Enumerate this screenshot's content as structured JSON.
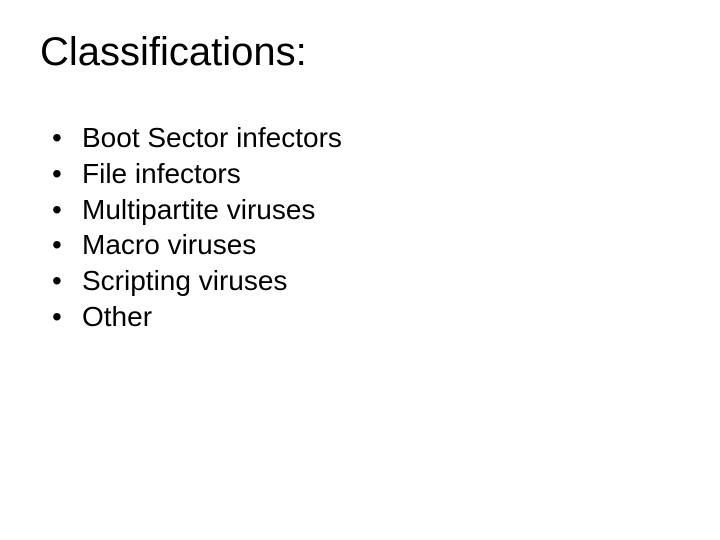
{
  "title": "Classifications:",
  "items": [
    {
      "label": "Boot Sector infectors"
    },
    {
      "label": "File infectors"
    },
    {
      "label": "Multipartite viruses"
    },
    {
      "label": "Macro viruses"
    },
    {
      "label": "Scripting viruses"
    },
    {
      "label": "Other"
    }
  ],
  "bullet": "•",
  "colors": {
    "background": "#ffffff",
    "text": "#000000"
  },
  "typography": {
    "title_fontsize": 40,
    "item_fontsize": 28,
    "font_family": "Arial"
  }
}
